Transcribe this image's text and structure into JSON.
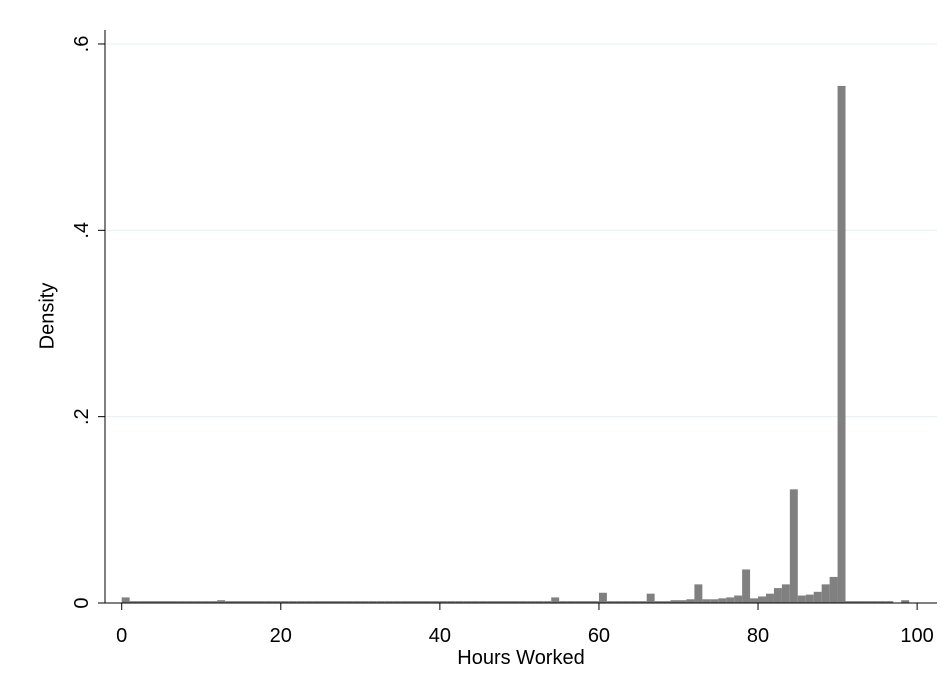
{
  "chart_data": {
    "type": "histogram",
    "x_label": "Hours Worked",
    "y_label": "Density",
    "bins": [
      0,
      1,
      2,
      3,
      4,
      5,
      6,
      7,
      8,
      9,
      10,
      11,
      12,
      13,
      14,
      15,
      16,
      17,
      18,
      19,
      20,
      21,
      22,
      23,
      24,
      25,
      26,
      27,
      28,
      29,
      30,
      31,
      32,
      33,
      34,
      35,
      36,
      37,
      38,
      39,
      40,
      41,
      42,
      43,
      44,
      45,
      46,
      47,
      48,
      49,
      50,
      51,
      52,
      53,
      54,
      55,
      56,
      57,
      58,
      59,
      60,
      61,
      62,
      63,
      64,
      65,
      66,
      67,
      68,
      69,
      70,
      71,
      72,
      73,
      74,
      75,
      76,
      77,
      78,
      79,
      80,
      81,
      82,
      83,
      84,
      85,
      86,
      87,
      88,
      89,
      90,
      91,
      92,
      93,
      94,
      95,
      96,
      97,
      98,
      99,
      100
    ],
    "values": [
      0.006,
      0.002,
      0.002,
      0.002,
      0.002,
      0.002,
      0.002,
      0.002,
      0.002,
      0.002,
      0.002,
      0.002,
      0.003,
      0.002,
      0.002,
      0.002,
      0.002,
      0.002,
      0.002,
      0.002,
      0.002,
      0.002,
      0.002,
      0.002,
      0.002,
      0.002,
      0.002,
      0.002,
      0.002,
      0.002,
      0.002,
      0.002,
      0.002,
      0.002,
      0.002,
      0.002,
      0.002,
      0.002,
      0.002,
      0.002,
      0.002,
      0.002,
      0.002,
      0.002,
      0.002,
      0.002,
      0.002,
      0.002,
      0.002,
      0.002,
      0.002,
      0.002,
      0.002,
      0.002,
      0.006,
      0.002,
      0.002,
      0.002,
      0.002,
      0.002,
      0.011,
      0.002,
      0.002,
      0.002,
      0.002,
      0.002,
      0.01,
      0.002,
      0.002,
      0.003,
      0.003,
      0.004,
      0.02,
      0.004,
      0.004,
      0.005,
      0.006,
      0.008,
      0.036,
      0.005,
      0.007,
      0.01,
      0.016,
      0.02,
      0.122,
      0.008,
      0.009,
      0.012,
      0.02,
      0.028,
      0.555,
      0.002,
      0.002,
      0.002,
      0.002,
      0.002,
      0.002,
      0,
      0.003,
      0
    ],
    "color": "#808080",
    "grid_color": "#e6eff1",
    "xlim": [
      -2.1,
      102.5
    ],
    "xticks": [
      0,
      20,
      40,
      60,
      80,
      100
    ],
    "ylim": [
      0,
      0.615
    ],
    "yticks": [
      0,
      {
        "value": 0.2,
        "label": ".2"
      },
      {
        "value": 0.4,
        "label": ".4"
      },
      {
        "value": 0.6,
        "label": ".6"
      }
    ],
    "grid": true
  }
}
